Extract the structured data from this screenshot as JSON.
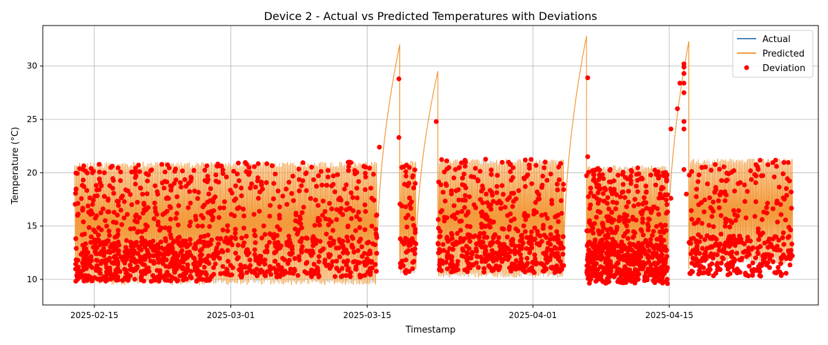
{
  "chart_data": {
    "type": "line",
    "title": "Device 2 - Actual vs Predicted Temperatures with Deviations",
    "xlabel": "Timestamp",
    "ylabel": "Temperature (°C)",
    "xlim": [
      "2025-02-09T17:00",
      "2025-04-30T07:00"
    ],
    "ylim": [
      7.6,
      33.8
    ],
    "xticks": [
      "2025-02-15",
      "2025-03-01",
      "2025-03-15",
      "2025-04-01",
      "2025-04-15"
    ],
    "yticks": [
      10,
      15,
      20,
      25,
      30
    ],
    "grid": true,
    "legend": {
      "position": "top-right",
      "entries": [
        "Actual",
        "Predicted",
        "Deviation"
      ]
    },
    "colors": {
      "actual": "#4a86bb",
      "predicted": "#f39b3c",
      "deviation": "#ff0000"
    },
    "series": [
      {
        "name": "Actual",
        "segments": [
          {
            "start": "2025-02-13T00:00",
            "end": "2025-03-16T00:00",
            "low": 9.6,
            "high": 20.6
          },
          {
            "start": "2025-03-16T00:00",
            "end": "2025-03-18T08:00",
            "ramp_to": 32.0
          },
          {
            "start": "2025-03-18T08:00",
            "end": "2025-03-20T00:00",
            "low": 10.5,
            "high": 21.0
          },
          {
            "start": "2025-03-20T00:00",
            "end": "2025-03-22T06:00",
            "ramp_to": 29.5
          },
          {
            "start": "2025-03-22T06:00",
            "end": "2025-04-04T04:00",
            "low": 10.2,
            "high": 21.2
          },
          {
            "start": "2025-04-04T04:00",
            "end": "2025-04-06T12:00",
            "ramp_to": 32.8
          },
          {
            "start": "2025-04-06T12:00",
            "end": "2025-04-14T20:00",
            "low": 10.0,
            "high": 20.6
          },
          {
            "start": "2025-04-14T20:00",
            "end": "2025-04-17T00:00",
            "ramp_to": 32.3
          },
          {
            "start": "2025-04-17T00:00",
            "end": "2025-04-27T16:00",
            "low": 11.5,
            "high": 21.2
          }
        ]
      },
      {
        "name": "Predicted",
        "segments": [
          {
            "start": "2025-02-13T00:00",
            "end": "2025-03-16T00:00",
            "low": 9.5,
            "high": 21.0
          },
          {
            "start": "2025-03-16T00:00",
            "end": "2025-03-18T08:00",
            "ramp_to": 32.0
          },
          {
            "start": "2025-03-18T08:00",
            "end": "2025-03-20T00:00",
            "low": 10.5,
            "high": 21.1
          },
          {
            "start": "2025-03-20T00:00",
            "end": "2025-03-22T06:00",
            "ramp_to": 29.5
          },
          {
            "start": "2025-03-22T06:00",
            "end": "2025-04-04T04:00",
            "low": 10.2,
            "high": 21.3
          },
          {
            "start": "2025-04-04T04:00",
            "end": "2025-04-06T12:00",
            "ramp_to": 32.8
          },
          {
            "start": "2025-04-06T12:00",
            "end": "2025-04-14T20:00",
            "low": 10.0,
            "high": 20.7
          },
          {
            "start": "2025-04-14T20:00",
            "end": "2025-04-17T00:00",
            "ramp_to": 32.3
          },
          {
            "start": "2025-04-17T00:00",
            "end": "2025-04-27T16:00",
            "low": 11.5,
            "high": 21.3
          }
        ]
      },
      {
        "name": "Deviation",
        "type": "scatter",
        "clusters": [
          {
            "start": "2025-02-13T00:00",
            "end": "2025-02-27T00:00",
            "low": 9.8,
            "high": 20.8,
            "count": 700
          },
          {
            "start": "2025-02-27T00:00",
            "end": "2025-03-16T00:00",
            "low": 10.2,
            "high": 21.0,
            "count": 520
          },
          {
            "start": "2025-03-18T08:00",
            "end": "2025-03-20T00:00",
            "low": 10.5,
            "high": 21.0,
            "count": 60
          },
          {
            "start": "2025-03-22T06:00",
            "end": "2025-04-04T04:00",
            "low": 10.6,
            "high": 21.3,
            "count": 520
          },
          {
            "start": "2025-04-06T12:00",
            "end": "2025-04-14T20:00",
            "low": 9.6,
            "high": 20.5,
            "count": 650
          },
          {
            "start": "2025-04-17T00:00",
            "end": "2025-04-27T16:00",
            "low": 10.3,
            "high": 21.3,
            "count": 380
          }
        ],
        "points": [
          {
            "x": "2025-03-18T06:00",
            "y": 28.8
          },
          {
            "x": "2025-03-18T06:00",
            "y": 23.3
          },
          {
            "x": "2025-03-16T06:00",
            "y": 22.4
          },
          {
            "x": "2025-03-22T02:00",
            "y": 24.8
          },
          {
            "x": "2025-04-06T15:00",
            "y": 28.9
          },
          {
            "x": "2025-04-06T15:00",
            "y": 21.5
          },
          {
            "x": "2025-04-15T04:00",
            "y": 24.1
          },
          {
            "x": "2025-04-15T04:00",
            "y": 17.6
          },
          {
            "x": "2025-04-15T20:00",
            "y": 26.0
          },
          {
            "x": "2025-04-16T02:00",
            "y": 28.4
          },
          {
            "x": "2025-04-16T12:00",
            "y": 30.2
          },
          {
            "x": "2025-04-16T12:00",
            "y": 29.9
          },
          {
            "x": "2025-04-16T12:00",
            "y": 29.3
          },
          {
            "x": "2025-04-16T12:00",
            "y": 28.4
          },
          {
            "x": "2025-04-16T12:00",
            "y": 27.5
          },
          {
            "x": "2025-04-16T12:00",
            "y": 24.8
          },
          {
            "x": "2025-04-16T12:00",
            "y": 24.1
          },
          {
            "x": "2025-04-16T12:00",
            "y": 20.3
          },
          {
            "x": "2025-04-16T18:00",
            "y": 18.0
          }
        ]
      }
    ]
  }
}
